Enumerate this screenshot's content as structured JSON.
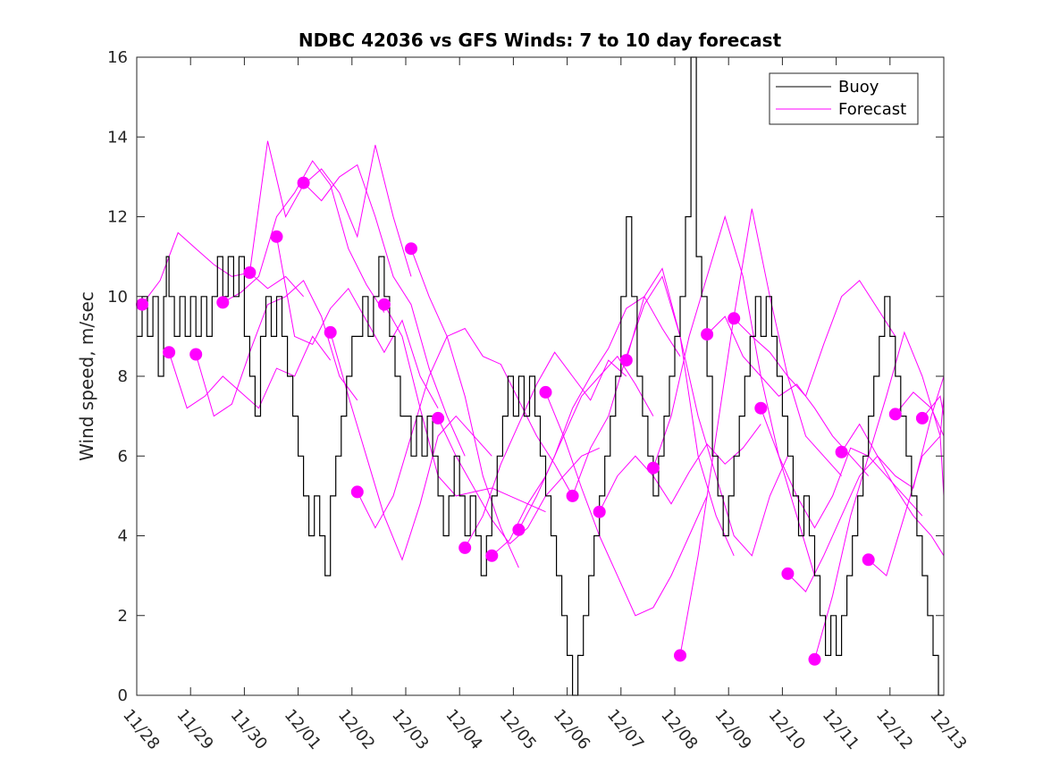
{
  "chart_data": {
    "type": "line",
    "title": "NDBC 42036 vs GFS Winds: 7 to 10 day forecast",
    "xlabel": "",
    "ylabel": "Wind speed, m/sec",
    "ylim": [
      0,
      16
    ],
    "yticks": [
      0,
      2,
      4,
      6,
      8,
      10,
      12,
      14,
      16
    ],
    "xlim_days": [
      0,
      15
    ],
    "xtick_labels": [
      "11/28",
      "11/29",
      "11/30",
      "12/01",
      "12/02",
      "12/03",
      "12/04",
      "12/05",
      "12/06",
      "12/07",
      "12/08",
      "12/09",
      "12/10",
      "12/11",
      "12/12",
      "12/13"
    ],
    "grid": false,
    "legend": {
      "position": "top-right",
      "entries": [
        {
          "name": "Buoy",
          "color": "#000000"
        },
        {
          "name": "Forecast",
          "color": "#ff00ff"
        }
      ]
    },
    "colors": {
      "buoy": "#000000",
      "forecast": "#ff00ff"
    },
    "buoy_series": {
      "name": "Buoy",
      "note": "step series, approximate hourly values read from the plot (day offset from 11/28, m/sec)",
      "points": [
        [
          0.0,
          9
        ],
        [
          0.1,
          10
        ],
        [
          0.2,
          9
        ],
        [
          0.3,
          10
        ],
        [
          0.4,
          8
        ],
        [
          0.5,
          9
        ],
        [
          0.5,
          10
        ],
        [
          0.55,
          11
        ],
        [
          0.6,
          10
        ],
        [
          0.7,
          9
        ],
        [
          0.8,
          10
        ],
        [
          0.9,
          9
        ],
        [
          1.0,
          10
        ],
        [
          1.1,
          9
        ],
        [
          1.2,
          10
        ],
        [
          1.3,
          9
        ],
        [
          1.4,
          10
        ],
        [
          1.5,
          11
        ],
        [
          1.6,
          10
        ],
        [
          1.7,
          11
        ],
        [
          1.8,
          10
        ],
        [
          1.9,
          11
        ],
        [
          2.0,
          9
        ],
        [
          2.1,
          8
        ],
        [
          2.2,
          7
        ],
        [
          2.3,
          9
        ],
        [
          2.4,
          10
        ],
        [
          2.5,
          9
        ],
        [
          2.6,
          10
        ],
        [
          2.7,
          9
        ],
        [
          2.8,
          8
        ],
        [
          2.9,
          7
        ],
        [
          3.0,
          6
        ],
        [
          3.1,
          5
        ],
        [
          3.2,
          4
        ],
        [
          3.3,
          5
        ],
        [
          3.4,
          4
        ],
        [
          3.5,
          3
        ],
        [
          3.6,
          5
        ],
        [
          3.7,
          6
        ],
        [
          3.8,
          7
        ],
        [
          3.9,
          8
        ],
        [
          4.0,
          9
        ],
        [
          4.1,
          9
        ],
        [
          4.2,
          10
        ],
        [
          4.3,
          9
        ],
        [
          4.4,
          10
        ],
        [
          4.5,
          11
        ],
        [
          4.6,
          10
        ],
        [
          4.7,
          9
        ],
        [
          4.8,
          8
        ],
        [
          4.9,
          7
        ],
        [
          5.0,
          7
        ],
        [
          5.1,
          6
        ],
        [
          5.2,
          7
        ],
        [
          5.3,
          6
        ],
        [
          5.4,
          7
        ],
        [
          5.5,
          6
        ],
        [
          5.6,
          5
        ],
        [
          5.7,
          4
        ],
        [
          5.8,
          5
        ],
        [
          5.9,
          6
        ],
        [
          6.0,
          5
        ],
        [
          6.1,
          4
        ],
        [
          6.2,
          5
        ],
        [
          6.3,
          4
        ],
        [
          6.4,
          3
        ],
        [
          6.5,
          4
        ],
        [
          6.6,
          5
        ],
        [
          6.7,
          6
        ],
        [
          6.8,
          7
        ],
        [
          6.9,
          8
        ],
        [
          7.0,
          7
        ],
        [
          7.1,
          8
        ],
        [
          7.2,
          7
        ],
        [
          7.3,
          8
        ],
        [
          7.4,
          7
        ],
        [
          7.5,
          6
        ],
        [
          7.6,
          5
        ],
        [
          7.7,
          4
        ],
        [
          7.8,
          3
        ],
        [
          7.9,
          2
        ],
        [
          8.0,
          1
        ],
        [
          8.1,
          0
        ],
        [
          8.2,
          1
        ],
        [
          8.3,
          2
        ],
        [
          8.4,
          3
        ],
        [
          8.5,
          4
        ],
        [
          8.6,
          5
        ],
        [
          8.7,
          6
        ],
        [
          8.8,
          7
        ],
        [
          8.9,
          8
        ],
        [
          9.0,
          10
        ],
        [
          9.1,
          12
        ],
        [
          9.2,
          10
        ],
        [
          9.3,
          8
        ],
        [
          9.4,
          7
        ],
        [
          9.5,
          6
        ],
        [
          9.6,
          5
        ],
        [
          9.7,
          6
        ],
        [
          9.8,
          7
        ],
        [
          9.9,
          8
        ],
        [
          10.0,
          9
        ],
        [
          10.1,
          10
        ],
        [
          10.2,
          12
        ],
        [
          10.3,
          16
        ],
        [
          10.4,
          11
        ],
        [
          10.5,
          10
        ],
        [
          10.6,
          8
        ],
        [
          10.7,
          6
        ],
        [
          10.8,
          5
        ],
        [
          10.9,
          4
        ],
        [
          11.0,
          5
        ],
        [
          11.1,
          6
        ],
        [
          11.2,
          7
        ],
        [
          11.3,
          8
        ],
        [
          11.4,
          9
        ],
        [
          11.5,
          10
        ],
        [
          11.6,
          9
        ],
        [
          11.7,
          10
        ],
        [
          11.8,
          9
        ],
        [
          11.9,
          8
        ],
        [
          12.0,
          7
        ],
        [
          12.1,
          6
        ],
        [
          12.2,
          5
        ],
        [
          12.3,
          4
        ],
        [
          12.4,
          5
        ],
        [
          12.5,
          4
        ],
        [
          12.6,
          3
        ],
        [
          12.7,
          2
        ],
        [
          12.8,
          1
        ],
        [
          12.9,
          2
        ],
        [
          13.0,
          1
        ],
        [
          13.1,
          2
        ],
        [
          13.2,
          3
        ],
        [
          13.3,
          4
        ],
        [
          13.4,
          5
        ],
        [
          13.5,
          6
        ],
        [
          13.6,
          7
        ],
        [
          13.7,
          8
        ],
        [
          13.8,
          9
        ],
        [
          13.9,
          10
        ],
        [
          14.0,
          9
        ],
        [
          14.1,
          8
        ],
        [
          14.2,
          7
        ],
        [
          14.3,
          6
        ],
        [
          14.4,
          5
        ],
        [
          14.5,
          4
        ],
        [
          14.6,
          3
        ],
        [
          14.7,
          2
        ],
        [
          14.8,
          1
        ],
        [
          14.9,
          0
        ],
        [
          15.0,
          0
        ]
      ]
    },
    "forecast_start_points": {
      "name": "Forecast (initial point of each 7-10 day run)",
      "x_days": [
        0.1,
        0.6,
        1.1,
        1.6,
        2.1,
        2.6,
        3.1,
        3.6,
        4.1,
        4.6,
        5.1,
        5.6,
        6.1,
        6.6,
        7.1,
        7.6,
        8.1,
        8.6,
        9.1,
        9.6,
        10.1,
        10.6,
        11.1,
        11.6,
        12.1,
        12.6,
        13.1,
        13.6,
        14.1,
        14.6
      ],
      "values": [
        9.8,
        8.6,
        8.55,
        9.85,
        10.6,
        11.5,
        12.85,
        9.1,
        5.1,
        9.8,
        11.2,
        6.95,
        3.7,
        3.5,
        4.15,
        7.6,
        5.0,
        4.6,
        8.4,
        5.7,
        1.0,
        9.05,
        9.45,
        7.2,
        3.05,
        0.9,
        6.1,
        3.4,
        7.05,
        6.95
      ]
    },
    "forecast_traces": {
      "note": "each forecast run is a short magenta polyline starting at its dot, spanning ~3 days; values approximated",
      "runs": [
        {
          "start": 0.1,
          "values": [
            9.8,
            10.4,
            11.6,
            11.2,
            10.8,
            10.5,
            10.6,
            10.2,
            10.5,
            10.0
          ]
        },
        {
          "start": 0.6,
          "values": [
            8.6,
            7.2,
            7.5,
            8.0,
            7.6,
            7.2,
            8.2,
            8.0,
            9.0,
            8.4
          ]
        },
        {
          "start": 1.1,
          "values": [
            8.55,
            7.0,
            7.3,
            8.6,
            9.8,
            10.0,
            10.4,
            9.5,
            8.0,
            7.4
          ]
        },
        {
          "start": 1.6,
          "values": [
            9.85,
            10.1,
            10.5,
            12.0,
            12.6,
            13.4,
            12.8,
            11.2,
            10.3,
            9.6
          ]
        },
        {
          "start": 2.1,
          "values": [
            10.6,
            13.9,
            12.0,
            12.8,
            13.2,
            12.6,
            11.5,
            13.8,
            12.0,
            10.5
          ]
        },
        {
          "start": 2.6,
          "values": [
            11.5,
            9.0,
            8.8,
            9.7,
            10.2,
            9.4,
            8.6,
            9.4,
            8.0,
            7.2
          ]
        },
        {
          "start": 3.1,
          "values": [
            12.85,
            12.4,
            13.0,
            13.3,
            12.0,
            10.5,
            9.8,
            8.2,
            7.0,
            6.0
          ]
        },
        {
          "start": 3.6,
          "values": [
            9.1,
            7.5,
            6.0,
            4.5,
            3.4,
            4.8,
            6.5,
            7.0,
            6.5,
            6.0
          ]
        },
        {
          "start": 4.1,
          "values": [
            5.1,
            4.2,
            5.0,
            6.5,
            8.0,
            9.0,
            7.5,
            5.5,
            4.2,
            3.2
          ]
        },
        {
          "start": 4.6,
          "values": [
            9.8,
            9.0,
            7.2,
            5.5,
            5.0,
            5.1,
            5.2,
            5.0,
            4.8,
            4.6
          ]
        },
        {
          "start": 5.1,
          "values": [
            11.2,
            10.0,
            9.0,
            9.2,
            8.5,
            8.3,
            7.4,
            6.5,
            5.8,
            5.0
          ]
        },
        {
          "start": 5.6,
          "values": [
            6.95,
            6.0,
            5.2,
            4.4,
            3.8,
            4.2,
            5.0,
            5.5,
            6.0,
            6.2
          ]
        },
        {
          "start": 6.1,
          "values": [
            3.7,
            4.5,
            5.8,
            6.8,
            7.8,
            8.6,
            8.0,
            7.4,
            8.4,
            8.0
          ]
        },
        {
          "start": 6.6,
          "values": [
            3.5,
            3.9,
            4.8,
            5.5,
            6.5,
            7.5,
            8.0,
            8.5,
            7.8,
            7.0
          ]
        },
        {
          "start": 7.1,
          "values": [
            4.15,
            5.0,
            6.0,
            7.2,
            8.0,
            8.7,
            9.7,
            10.0,
            9.2,
            8.5
          ]
        },
        {
          "start": 7.6,
          "values": [
            7.6,
            6.5,
            5.2,
            4.0,
            3.0,
            2.0,
            2.2,
            3.0,
            4.0,
            5.0
          ]
        },
        {
          "start": 8.1,
          "values": [
            5.0,
            6.2,
            7.0,
            8.5,
            9.8,
            10.5,
            9.0,
            6.0,
            4.5,
            3.5
          ]
        },
        {
          "start": 8.6,
          "values": [
            4.6,
            5.5,
            6.0,
            5.5,
            4.8,
            5.6,
            6.3,
            5.8,
            6.2,
            6.8
          ]
        },
        {
          "start": 9.1,
          "values": [
            8.4,
            10.0,
            10.7,
            9.0,
            7.0,
            5.5,
            4.0,
            3.5,
            5.0,
            6.0
          ]
        },
        {
          "start": 9.6,
          "values": [
            5.7,
            7.0,
            9.0,
            10.5,
            12.0,
            10.5,
            8.0,
            6.0,
            4.5,
            3.0
          ]
        },
        {
          "start": 10.1,
          "values": [
            1.0,
            3.5,
            6.5,
            9.5,
            12.2,
            10.0,
            8.0,
            6.5,
            6.0,
            5.5
          ]
        },
        {
          "start": 10.6,
          "values": [
            9.05,
            9.5,
            8.5,
            8.0,
            7.5,
            7.8,
            7.2,
            6.5,
            6.0,
            5.5
          ]
        },
        {
          "start": 11.1,
          "values": [
            9.45,
            9.0,
            8.6,
            8.0,
            7.5,
            8.8,
            10.0,
            10.4,
            9.7,
            9.0
          ]
        },
        {
          "start": 11.6,
          "values": [
            7.2,
            6.0,
            5.0,
            4.2,
            5.0,
            6.2,
            6.0,
            5.5,
            5.0,
            4.5
          ]
        },
        {
          "start": 12.1,
          "values": [
            3.05,
            2.6,
            3.5,
            4.5,
            5.5,
            6.0,
            5.2,
            4.5,
            4.0,
            3.5
          ]
        },
        {
          "start": 12.6,
          "values": [
            0.9,
            2.5,
            4.5,
            6.0,
            7.5,
            9.1,
            8.0,
            6.5,
            5.0,
            4.5
          ]
        },
        {
          "start": 13.1,
          "values": [
            6.1,
            6.8,
            6.0,
            5.5,
            5.2,
            7.0,
            8.0,
            8.5,
            7.8,
            7.0
          ]
        },
        {
          "start": 13.6,
          "values": [
            3.4,
            3.0,
            4.5,
            6.0,
            6.5,
            7.5,
            8.0,
            7.5,
            6.8,
            6.0
          ]
        },
        {
          "start": 14.1,
          "values": [
            7.05,
            7.6,
            7.2,
            6.5,
            6.0,
            5.5,
            5.0,
            4.5,
            4.2,
            4.0
          ]
        },
        {
          "start": 14.6,
          "values": [
            6.95,
            7.5,
            7.0,
            6.5,
            5.8,
            5.0,
            4.5,
            3.5,
            6.5,
            9.7
          ]
        }
      ]
    }
  }
}
